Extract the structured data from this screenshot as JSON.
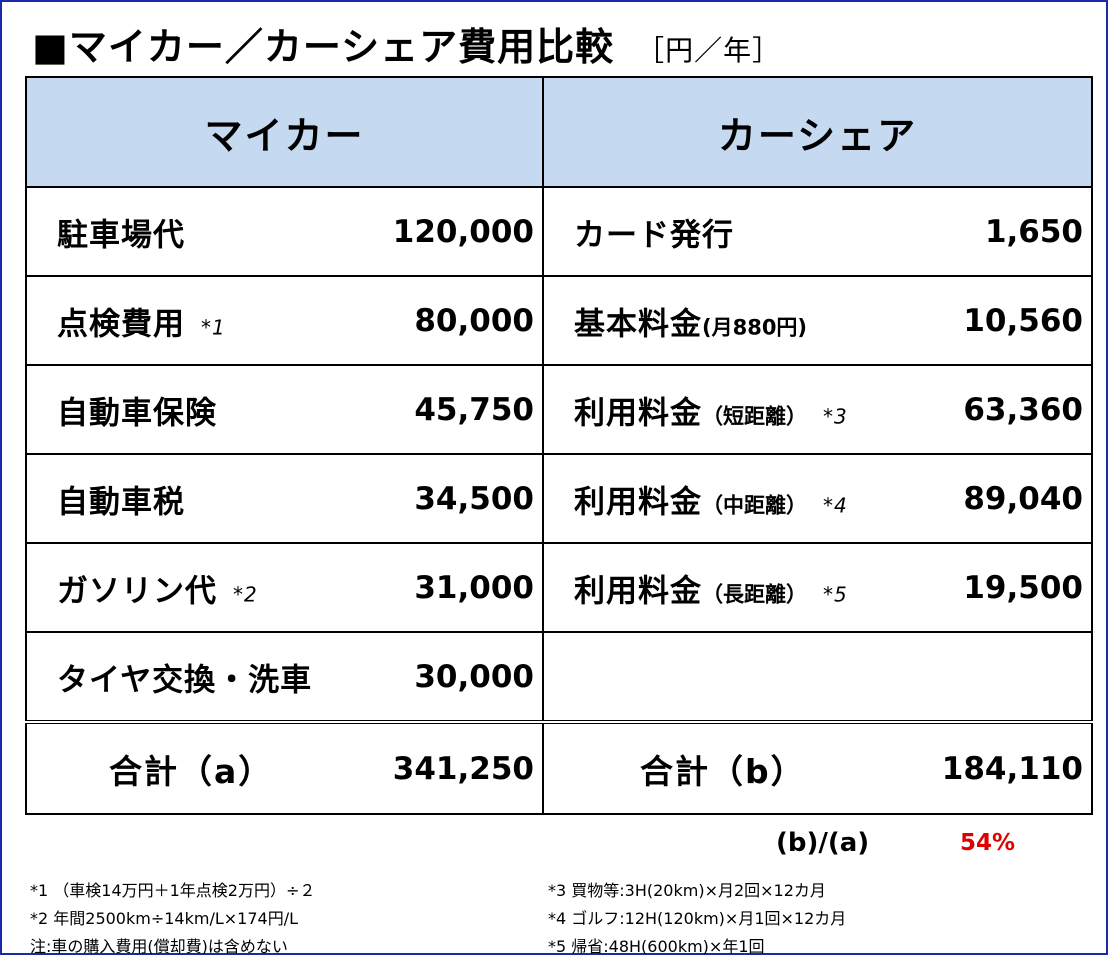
{
  "title": {
    "main": "■マイカー／カーシェア費用比較",
    "unit": "［円／年］"
  },
  "headers": {
    "left": "マイカー",
    "right": "カーシェア"
  },
  "rows": [
    {
      "left_label": "駐車場代",
      "left_note": "",
      "left_value": "120,000",
      "right_label": "カード発行",
      "right_small": "",
      "right_note": "",
      "right_value": "1,650"
    },
    {
      "left_label": "点検費用",
      "left_note": "*1",
      "left_value": "80,000",
      "right_label": "基本料金",
      "right_small": "(月880円)",
      "right_note": "",
      "right_value": "10,560"
    },
    {
      "left_label": "自動車保険",
      "left_note": "",
      "left_value": "45,750",
      "right_label": "利用料金",
      "right_small": "（短距離）",
      "right_note": "*3",
      "right_value": "63,360"
    },
    {
      "left_label": "自動車税",
      "left_note": "",
      "left_value": "34,500",
      "right_label": "利用料金",
      "right_small": "（中距離）",
      "right_note": "*4",
      "right_value": "89,040"
    },
    {
      "left_label": "ガソリン代",
      "left_note": "*2",
      "left_value": "31,000",
      "right_label": "利用料金",
      "right_small": "（長距離）",
      "right_note": "*5",
      "right_value": "19,500"
    },
    {
      "left_label": "タイヤ交換・洗車",
      "left_note": "",
      "left_value": "30,000",
      "right_label": "",
      "right_small": "",
      "right_note": "",
      "right_value": ""
    }
  ],
  "totals": {
    "left_label": "合計（a）",
    "left_value": "341,250",
    "right_label": "合計（b）",
    "right_value": "184,110"
  },
  "ratio": {
    "label": "(b)/(a)",
    "value": "54%"
  },
  "footnotes": {
    "n1": "*1 （車検14万円＋1年点検2万円）÷２",
    "n2": "*2 年間2500km÷14km/L×174円/L",
    "n_note": "注:車の購入費用(償却費)は含めない",
    "n3": "*3 買物等:3H(20km)×月2回×12カ月",
    "n4": "*4 ゴルフ:12H(120km)×月1回×12カ月",
    "n5": "*5 帰省:48H(600km)×年1回"
  },
  "colors": {
    "header_bg": "#c5d9f1",
    "frame": "#1b2aa8",
    "ratio_value": "#e00000"
  }
}
